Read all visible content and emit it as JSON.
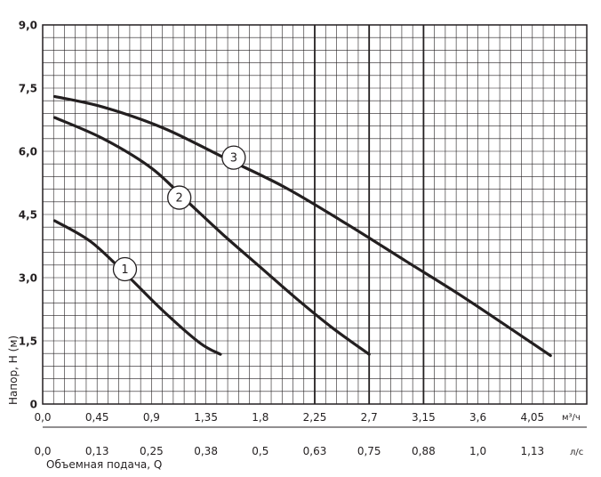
{
  "chart_data": {
    "type": "line",
    "x_unit_top": "м³/ч",
    "x_unit_bottom": "л/с",
    "xlabel": "Объемная подача, Q",
    "ylabel": "Напор, Н (м)",
    "xlim": [
      0,
      4.5
    ],
    "ylim": [
      0,
      9.0
    ],
    "grid": true,
    "x_ticks_top": [
      "0,0",
      "0,45",
      "0,9",
      "1,35",
      "1,8",
      "2,25",
      "2,7",
      "3,15",
      "3,6",
      "4,05"
    ],
    "x_ticks_top_values": [
      0,
      0.45,
      0.9,
      1.35,
      1.8,
      2.25,
      2.7,
      3.15,
      3.6,
      4.05
    ],
    "x_ticks_bottom": [
      "0,0",
      "0,13",
      "0,25",
      "0,38",
      "0,5",
      "0,63",
      "0,75",
      "0,88",
      "1,0",
      "1,13"
    ],
    "y_ticks": [
      "0",
      "1,5",
      "3,0",
      "4,5",
      "6,0",
      "7,5",
      "9,0"
    ],
    "y_ticks_values": [
      0,
      1.5,
      3.0,
      4.5,
      6.0,
      7.5,
      9.0
    ],
    "emphasized_x_values": [
      2.25,
      2.7,
      3.15
    ],
    "series": [
      {
        "label": "1",
        "label_at": [
          0.68,
          3.2
        ],
        "x": [
          0.1,
          0.4,
          0.7,
          1.0,
          1.3,
          1.47
        ],
        "y": [
          4.35,
          3.85,
          3.05,
          2.2,
          1.45,
          1.18
        ]
      },
      {
        "label": "2",
        "label_at": [
          1.13,
          4.9
        ],
        "x": [
          0.1,
          0.5,
          0.9,
          1.2,
          1.5,
          1.8,
          2.1,
          2.4,
          2.7
        ],
        "y": [
          6.8,
          6.3,
          5.6,
          4.8,
          4.0,
          3.25,
          2.5,
          1.8,
          1.18
        ]
      },
      {
        "label": "3",
        "label_at": [
          1.58,
          5.85
        ],
        "x": [
          0.1,
          0.5,
          1.0,
          1.5,
          2.0,
          2.5,
          3.0,
          3.5,
          4.2
        ],
        "y": [
          7.3,
          7.05,
          6.55,
          5.85,
          5.15,
          4.3,
          3.4,
          2.5,
          1.15
        ]
      }
    ]
  }
}
